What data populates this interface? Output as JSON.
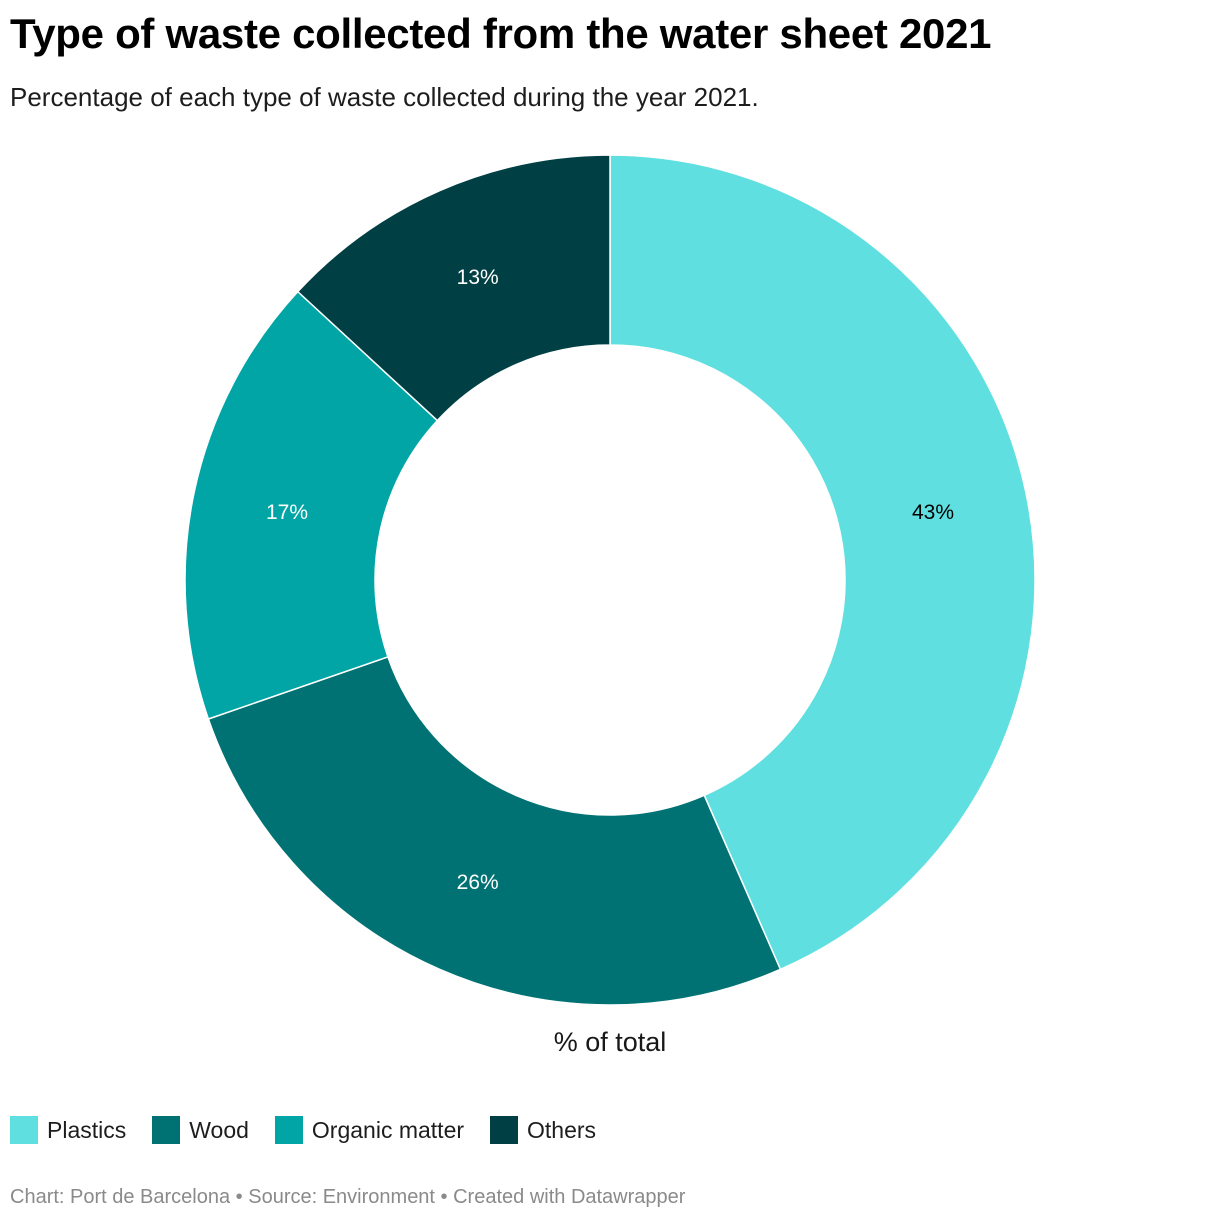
{
  "header": {
    "title": "Type of waste collected from the water sheet 2021",
    "subtitle": "Percentage of each type of waste collected during the year 2021."
  },
  "chart_data": {
    "type": "pie",
    "variant": "donut",
    "title": "Type of waste collected from the water sheet 2021",
    "subtitle": "Percentage of each type of waste collected during the year 2021.",
    "center_label": "% of total",
    "unit": "%",
    "categories": [
      "Plastics",
      "Wood",
      "Organic matter",
      "Others"
    ],
    "values": [
      43,
      26,
      17,
      13
    ],
    "labels": [
      "43%",
      "26%",
      "17%",
      "13%"
    ],
    "colors": [
      "#5fdfe0",
      "#017273",
      "#01a5a6",
      "#004045"
    ],
    "label_colors": [
      "#000000",
      "#ffffff",
      "#ffffff",
      "#ffffff"
    ],
    "start_angle_deg": 0,
    "direction": "clockwise",
    "legend_position": "bottom-left"
  },
  "legend": {
    "items": [
      {
        "label": "Plastics",
        "color": "#5fdfe0"
      },
      {
        "label": "Wood",
        "color": "#017273"
      },
      {
        "label": "Organic matter",
        "color": "#01a5a6"
      },
      {
        "label": "Others",
        "color": "#004045"
      }
    ]
  },
  "footer": {
    "text": "Chart: Port de Barcelona • Source: Environment • Created with Datawrapper"
  }
}
